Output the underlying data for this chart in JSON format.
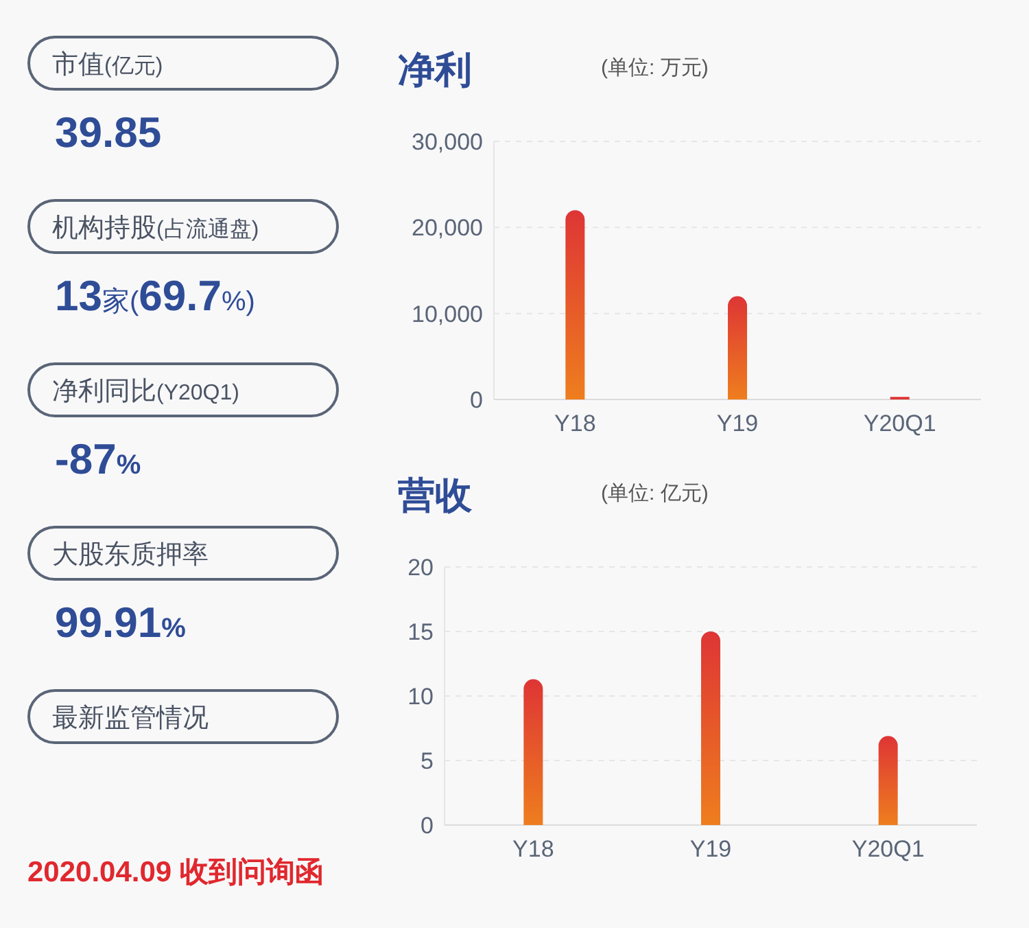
{
  "chart_data": [
    {
      "type": "other",
      "annotations": [
        "市值(亿元)",
        "39.85",
        "机构持股(占流通盘)",
        "13家(69.7%)",
        "净利同比(Y20Q1)",
        "-87%",
        "大股东质押率",
        "99.91%",
        "最新监管情况",
        "2020.04.09 收到问询函"
      ]
    },
    {
      "type": "bar",
      "title": "净利",
      "subtitle": "(单位: 万元)",
      "categories": [
        "Y18",
        "Y19",
        "Y20Q1"
      ],
      "values": [
        22000,
        12000,
        300
      ],
      "color": "#de3535",
      "ylim": [
        0,
        30000
      ],
      "yticks": [
        {
          "value": 0,
          "label": "0"
        },
        {
          "value": 10000,
          "label": "10,000"
        },
        {
          "value": 20000,
          "label": "20,000"
        },
        {
          "value": 30000,
          "label": "30,000"
        }
      ],
      "grid": "y"
    },
    {
      "type": "bar",
      "title": "营收",
      "subtitle": "(单位: 亿元)",
      "categories": [
        "Y18",
        "Y19",
        "Y20Q1"
      ],
      "values": [
        11.3,
        15,
        6.9
      ],
      "color": "#de3535",
      "ylim": [
        0,
        20
      ],
      "yticks": [
        0,
        5,
        10,
        15,
        20
      ],
      "grid": "y"
    }
  ]
}
